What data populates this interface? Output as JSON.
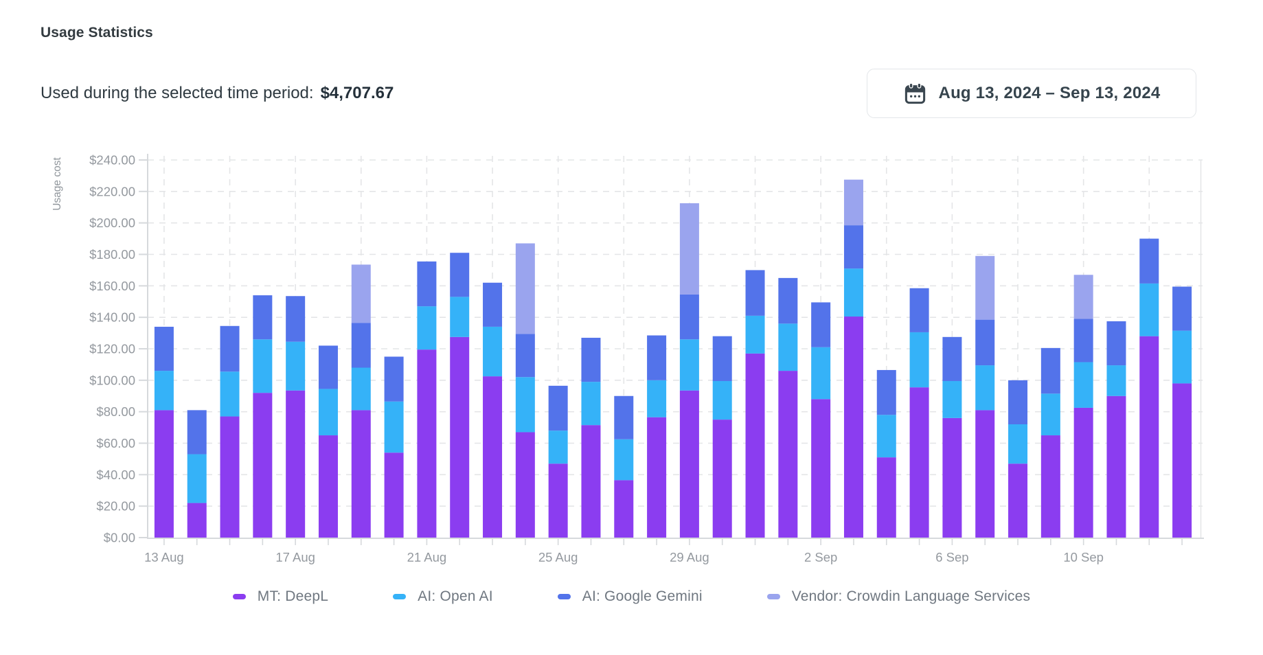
{
  "header": {
    "title": "Usage Statistics",
    "subtitle_label": "Used during the selected time period:",
    "subtitle_value": "$4,707.67",
    "date_range": "Aug 13, 2024 – Sep 13, 2024",
    "calendar_icon": "calendar-icon",
    "icon_color": "#3b4750"
  },
  "chart_data": {
    "type": "bar",
    "stacked": true,
    "title": "",
    "xlabel": "",
    "ylabel": "Usage cost",
    "ylim": [
      0,
      240
    ],
    "ytick_step": 20,
    "ytick_prefix": "$",
    "grid": true,
    "legend_position": "bottom",
    "x_tick_every": 4,
    "x_tick_labels": [
      "13 Aug",
      "17 Aug",
      "21 Aug",
      "25 Aug",
      "29 Aug",
      "2 Sep",
      "6 Sep",
      "10 Sep"
    ],
    "categories": [
      "13 Aug",
      "14 Aug",
      "15 Aug",
      "16 Aug",
      "17 Aug",
      "18 Aug",
      "19 Aug",
      "20 Aug",
      "21 Aug",
      "22 Aug",
      "23 Aug",
      "24 Aug",
      "25 Aug",
      "26 Aug",
      "27 Aug",
      "28 Aug",
      "29 Aug",
      "30 Aug",
      "31 Aug",
      "1 Sep",
      "2 Sep",
      "3 Sep",
      "4 Sep",
      "5 Sep",
      "6 Sep",
      "7 Sep",
      "8 Sep",
      "9 Sep",
      "10 Sep",
      "11 Sep",
      "12 Sep",
      "13 Sep"
    ],
    "series": [
      {
        "name": "MT: DeepL",
        "color": "#8b3df0",
        "values": [
          81,
          22,
          77,
          92,
          93.5,
          65,
          81,
          54,
          119.5,
          127.5,
          102.5,
          67,
          47,
          71.5,
          36.5,
          76.5,
          93.5,
          75,
          117,
          106,
          88,
          140.5,
          51,
          95.5,
          76,
          81,
          47,
          65,
          82.5,
          90,
          128,
          98
        ]
      },
      {
        "name": "AI: Open AI",
        "color": "#35b2f8",
        "values": [
          25,
          31,
          28.5,
          34,
          31,
          29.5,
          27,
          32.5,
          27.5,
          25.5,
          31.5,
          35,
          21,
          27.5,
          26,
          23.5,
          32.5,
          24.5,
          24,
          30,
          33,
          30.5,
          27,
          35,
          23.5,
          28.5,
          25,
          26.5,
          29,
          19.5,
          33.5,
          33.5
        ]
      },
      {
        "name": "AI: Google Gemini",
        "color": "#5373ea",
        "values": [
          28,
          28,
          29,
          28,
          29,
          27.5,
          28.5,
          28.5,
          28.5,
          28,
          28,
          27.5,
          28.5,
          28,
          27.5,
          28.5,
          28.5,
          28.5,
          29,
          29,
          28.5,
          27.5,
          28.5,
          28,
          28,
          29,
          28,
          29,
          27.5,
          28,
          28.5,
          28
        ]
      },
      {
        "name": "Vendor: Crowdin Language Services",
        "color": "#9aa4ee",
        "values": [
          0,
          0,
          0,
          0,
          0,
          0,
          37,
          0,
          0,
          0,
          0,
          57.5,
          0,
          0,
          0,
          0,
          58,
          0,
          0,
          0,
          0,
          29,
          0,
          0,
          0,
          40.5,
          0,
          0,
          28,
          0,
          0,
          0
        ]
      }
    ],
    "colors": {
      "axis_line": "#d6d9dc",
      "grid_line": "#e4e5e7",
      "tick_label": "#94999f",
      "axis_title": "#8f959b"
    }
  }
}
